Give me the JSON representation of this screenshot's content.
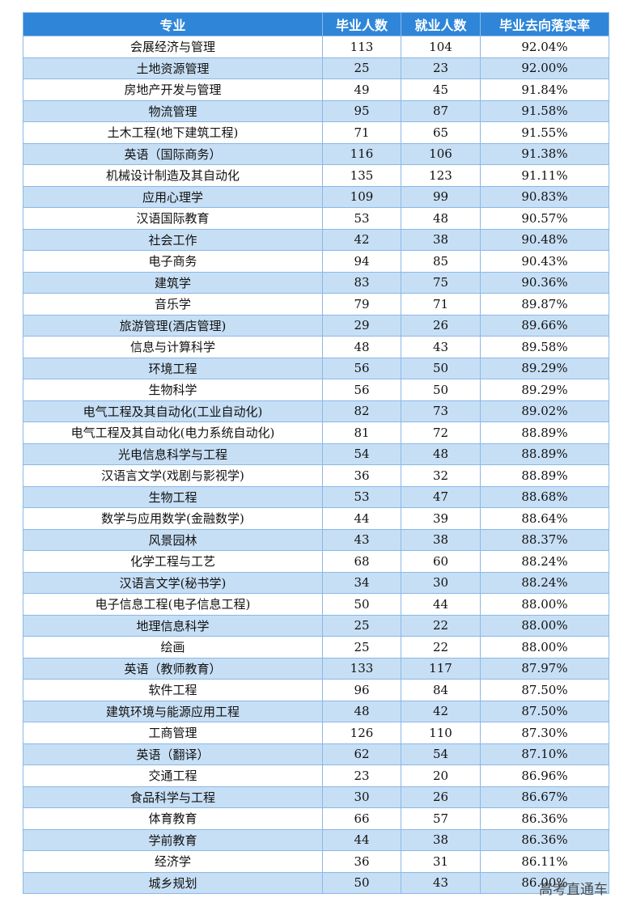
{
  "table": {
    "headers": [
      "专业",
      "毕业人数",
      "就业人数",
      "毕业去向落实率"
    ],
    "rows": [
      [
        "会展经济与管理",
        "113",
        "104",
        "92.04%"
      ],
      [
        "土地资源管理",
        "25",
        "23",
        "92.00%"
      ],
      [
        "房地产开发与管理",
        "49",
        "45",
        "91.84%"
      ],
      [
        "物流管理",
        "95",
        "87",
        "91.58%"
      ],
      [
        "土木工程(地下建筑工程)",
        "71",
        "65",
        "91.55%"
      ],
      [
        "英语（国际商务）",
        "116",
        "106",
        "91.38%"
      ],
      [
        "机械设计制造及其自动化",
        "135",
        "123",
        "91.11%"
      ],
      [
        "应用心理学",
        "109",
        "99",
        "90.83%"
      ],
      [
        "汉语国际教育",
        "53",
        "48",
        "90.57%"
      ],
      [
        "社会工作",
        "42",
        "38",
        "90.48%"
      ],
      [
        "电子商务",
        "94",
        "85",
        "90.43%"
      ],
      [
        "建筑学",
        "83",
        "75",
        "90.36%"
      ],
      [
        "音乐学",
        "79",
        "71",
        "89.87%"
      ],
      [
        "旅游管理(酒店管理)",
        "29",
        "26",
        "89.66%"
      ],
      [
        "信息与计算科学",
        "48",
        "43",
        "89.58%"
      ],
      [
        "环境工程",
        "56",
        "50",
        "89.29%"
      ],
      [
        "生物科学",
        "56",
        "50",
        "89.29%"
      ],
      [
        "电气工程及其自动化(工业自动化)",
        "82",
        "73",
        "89.02%"
      ],
      [
        "电气工程及其自动化(电力系统自动化)",
        "81",
        "72",
        "88.89%"
      ],
      [
        "光电信息科学与工程",
        "54",
        "48",
        "88.89%"
      ],
      [
        "汉语言文学(戏剧与影视学)",
        "36",
        "32",
        "88.89%"
      ],
      [
        "生物工程",
        "53",
        "47",
        "88.68%"
      ],
      [
        "数学与应用数学(金融数学)",
        "44",
        "39",
        "88.64%"
      ],
      [
        "风景园林",
        "43",
        "38",
        "88.37%"
      ],
      [
        "化学工程与工艺",
        "68",
        "60",
        "88.24%"
      ],
      [
        "汉语言文学(秘书学)",
        "34",
        "30",
        "88.24%"
      ],
      [
        "电子信息工程(电子信息工程)",
        "50",
        "44",
        "88.00%"
      ],
      [
        "地理信息科学",
        "25",
        "22",
        "88.00%"
      ],
      [
        "绘画",
        "25",
        "22",
        "88.00%"
      ],
      [
        "英语（教师教育）",
        "133",
        "117",
        "87.97%"
      ],
      [
        "软件工程",
        "96",
        "84",
        "87.50%"
      ],
      [
        "建筑环境与能源应用工程",
        "48",
        "42",
        "87.50%"
      ],
      [
        "工商管理",
        "126",
        "110",
        "87.30%"
      ],
      [
        "英语（翻译）",
        "62",
        "54",
        "87.10%"
      ],
      [
        "交通工程",
        "23",
        "20",
        "86.96%"
      ],
      [
        "食品科学与工程",
        "30",
        "26",
        "86.67%"
      ],
      [
        "体育教育",
        "66",
        "57",
        "86.36%"
      ],
      [
        "学前教育",
        "44",
        "38",
        "86.36%"
      ],
      [
        "经济学",
        "36",
        "31",
        "86.11%"
      ],
      [
        "城乡规划",
        "50",
        "43",
        "86.00%"
      ]
    ]
  },
  "watermark": "高考直通车",
  "colors": {
    "header_bg": "#2f86d8",
    "stripe_bg": "#c7dff5",
    "border": "#8ab8e8"
  }
}
